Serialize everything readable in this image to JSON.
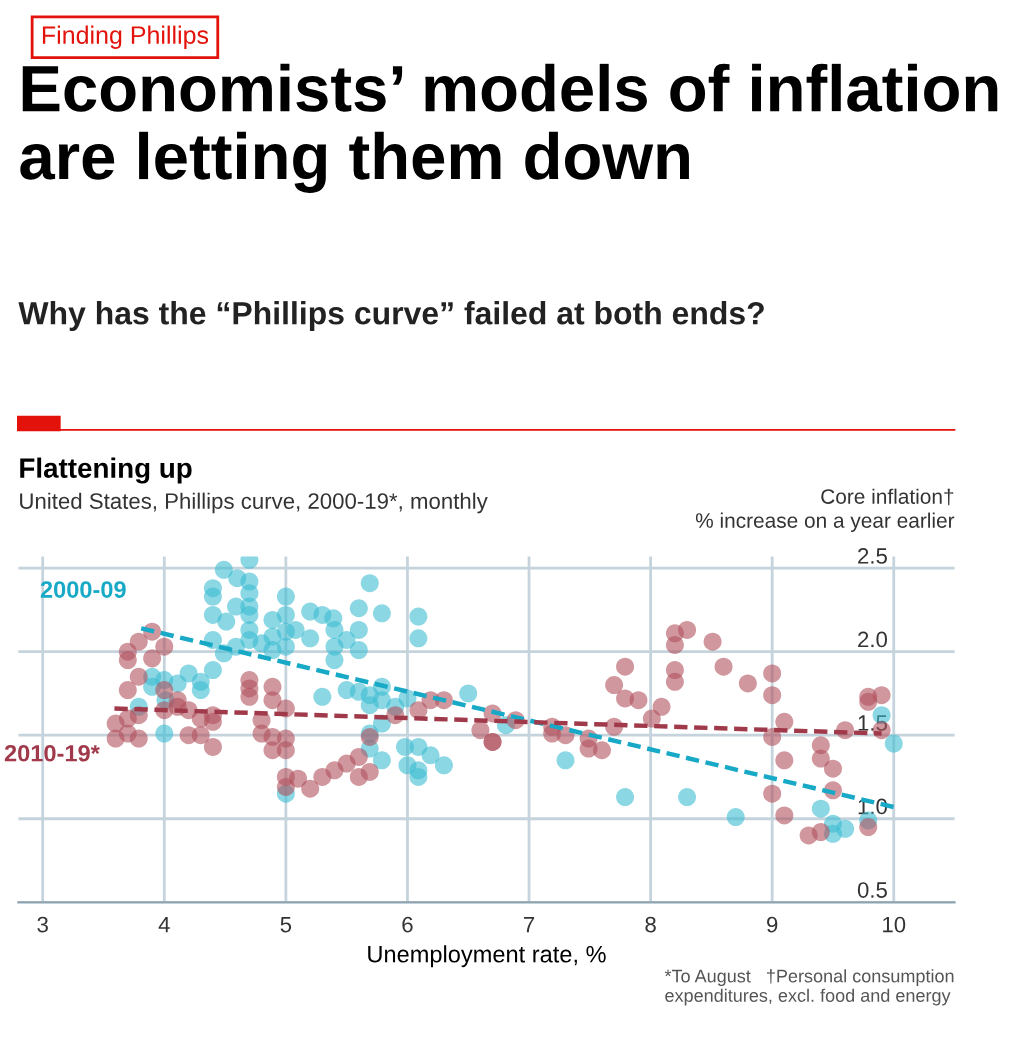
{
  "chart_data": {
    "type": "scatter",
    "title": "Economists’ models of inflation are letting them down",
    "subtitle": "Why has the “Phillips curve” failed at both ends?",
    "annotations": [
      "Finding Phillips",
      "Flattening up",
      "United States, Phillips curve, 2000-19*, monthly",
      "*To August   †Personal consumption\nexpenditures, excl. food and energy"
    ],
    "xlabel": "Unemployment rate, %",
    "ylabel": "Core inflation†\n% increase on a year earlier",
    "xlim": [
      2.8,
      10.5
    ],
    "xticks": [
      3,
      4,
      5,
      6,
      7,
      8,
      9,
      10
    ],
    "ylim": [
      0.5,
      2.57
    ],
    "yticks": [
      0.5,
      {
        "value": 1,
        "label": "1.0"
      },
      1.5,
      {
        "value": 2,
        "label": "2.0"
      },
      2.5
    ],
    "grid": true,
    "series": [
      {
        "name": "2000-09",
        "color": "#3ebcd2",
        "marker": "circle",
        "x": [
          4.49,
          4.7,
          4.6,
          4.7,
          4.4,
          4.4,
          4.7,
          5.0,
          4.59,
          4.7,
          4.4,
          4.51,
          4.7,
          4.89,
          5.0,
          5.2,
          5.3,
          5.39,
          5.6,
          5.69,
          5.79,
          6.09,
          6.09,
          5.6,
          5.4,
          5.2,
          5.08,
          5.0,
          4.89,
          4.7,
          4.7,
          4.59,
          4.8,
          4.89,
          5.0,
          4.4,
          5.4,
          5.5,
          5.6,
          5.4,
          4.49,
          4.4,
          4.2,
          3.9,
          4.0,
          3.9,
          4.11,
          4.3,
          4.3,
          4.01,
          3.79,
          4.0,
          5.3,
          5.5,
          5.6,
          5.69,
          5.79,
          5.79,
          5.69,
          5.9,
          5.79,
          5.69,
          5.69,
          5.79,
          6.0,
          5.98,
          6.09,
          6.19,
          6.3,
          6.0,
          6.09,
          6.09,
          6.5,
          5.0,
          6.81,
          7.3,
          7.79,
          8.3,
          8.7,
          9.4,
          9.5,
          9.5,
          9.6,
          9.79,
          9.9,
          10.0
        ],
        "values": [
          2.49,
          2.55,
          2.44,
          2.42,
          2.38,
          2.33,
          2.35,
          2.33,
          2.27,
          2.27,
          2.22,
          2.18,
          2.22,
          2.19,
          2.22,
          2.24,
          2.22,
          2.2,
          2.26,
          2.41,
          2.23,
          2.21,
          2.08,
          2.13,
          2.13,
          2.08,
          2.13,
          2.12,
          2.09,
          2.13,
          2.07,
          2.03,
          2.05,
          2.01,
          2.03,
          2.07,
          2.03,
          2.07,
          2.01,
          1.95,
          1.99,
          1.89,
          1.87,
          1.85,
          1.83,
          1.79,
          1.81,
          1.82,
          1.77,
          1.71,
          1.67,
          1.51,
          1.73,
          1.77,
          1.76,
          1.74,
          1.79,
          1.71,
          1.68,
          1.67,
          1.57,
          1.51,
          1.42,
          1.35,
          1.72,
          1.43,
          1.43,
          1.38,
          1.32,
          1.32,
          1.29,
          1.25,
          1.75,
          1.15,
          1.56,
          1.35,
          1.13,
          1.13,
          1.01,
          1.06,
          0.97,
          0.91,
          0.94,
          0.99,
          1.62,
          1.45
        ]
      },
      {
        "name": "2010-19*",
        "color": "#b0525e",
        "marker": "circle",
        "x": [
          3.9,
          3.79,
          3.7,
          3.7,
          3.9,
          4.0,
          3.79,
          3.7,
          4.0,
          4.11,
          4.11,
          4.2,
          3.79,
          3.7,
          3.6,
          3.6,
          3.7,
          3.79,
          4.0,
          4.3,
          4.4,
          4.4,
          4.2,
          4.3,
          4.4,
          4.7,
          4.7,
          4.7,
          4.89,
          4.89,
          5.0,
          4.8,
          4.8,
          4.89,
          5.0,
          4.89,
          5.0,
          5.0,
          5.0,
          5.1,
          5.2,
          5.3,
          5.4,
          5.5,
          5.6,
          5.69,
          5.6,
          5.69,
          5.9,
          6.09,
          6.19,
          6.3,
          6.6,
          6.7,
          6.7,
          6.7,
          6.89,
          7.19,
          7.19,
          7.3,
          7.49,
          7.49,
          7.6,
          7.7,
          7.7,
          7.79,
          7.79,
          7.9,
          8.01,
          8.09,
          8.2,
          8.2,
          8.2,
          8.2,
          8.3,
          8.51,
          8.6,
          8.8,
          9.0,
          9.0,
          9.1,
          9.0,
          9.1,
          9.0,
          9.1,
          9.3,
          9.4,
          9.4,
          9.4,
          9.5,
          9.5,
          9.6,
          9.79,
          9.79,
          9.9,
          9.79,
          9.9
        ],
        "values": [
          2.12,
          2.06,
          2.0,
          1.95,
          1.96,
          2.03,
          1.85,
          1.77,
          1.77,
          1.71,
          1.67,
          1.65,
          1.62,
          1.6,
          1.57,
          1.48,
          1.51,
          1.48,
          1.65,
          1.6,
          1.62,
          1.58,
          1.5,
          1.5,
          1.43,
          1.83,
          1.78,
          1.73,
          1.79,
          1.71,
          1.66,
          1.59,
          1.51,
          1.49,
          1.48,
          1.41,
          1.41,
          1.25,
          1.19,
          1.24,
          1.18,
          1.25,
          1.29,
          1.33,
          1.37,
          1.28,
          1.25,
          1.49,
          1.62,
          1.65,
          1.71,
          1.71,
          1.53,
          1.46,
          1.63,
          1.46,
          1.59,
          1.55,
          1.51,
          1.5,
          1.48,
          1.42,
          1.41,
          1.55,
          1.8,
          1.91,
          1.72,
          1.71,
          1.6,
          1.67,
          1.89,
          1.82,
          2.04,
          2.11,
          2.13,
          2.06,
          1.91,
          1.81,
          1.87,
          1.74,
          1.58,
          1.49,
          1.35,
          1.15,
          1.02,
          0.9,
          0.92,
          1.44,
          1.36,
          1.3,
          1.17,
          1.53,
          0.95,
          1.73,
          1.74,
          1.7,
          1.53
        ]
      },
      {
        "color": "#17a9c6",
        "type": "line",
        "line_style": "dashed",
        "x": [
          3.81,
          10.0
        ],
        "values": [
          2.14,
          1.07
        ]
      },
      {
        "color": "#a03a4b",
        "type": "line",
        "line_style": "dashed",
        "x": [
          3.59,
          9.9
        ],
        "values": [
          1.66,
          1.51
        ]
      }
    ]
  }
}
